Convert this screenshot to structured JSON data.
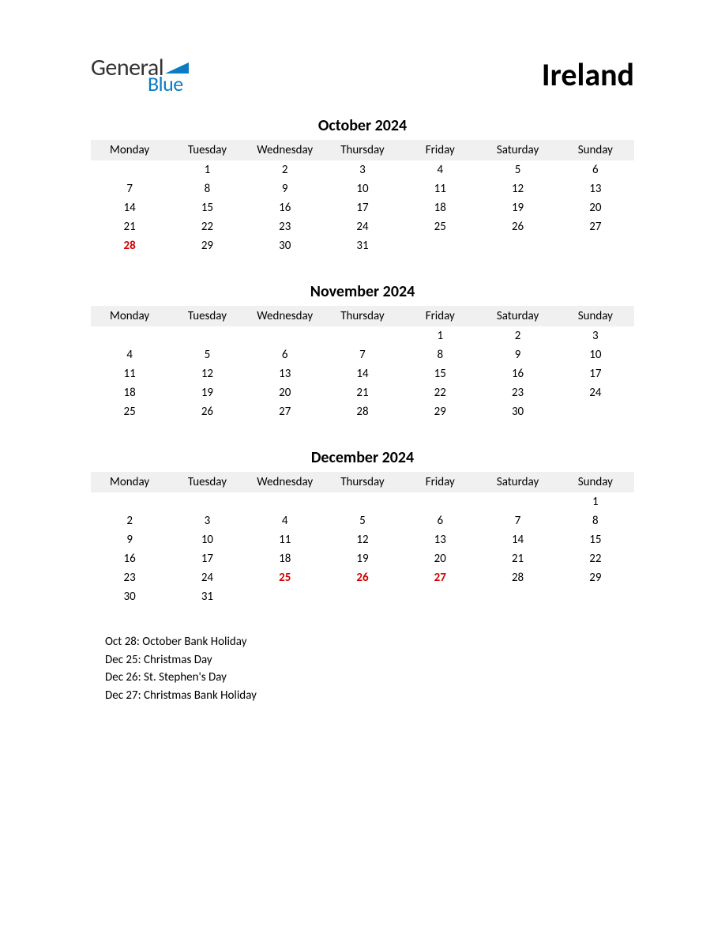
{
  "logo": {
    "text_general": "General",
    "text_blue": "Blue",
    "triangle_color": "#0b7cc1"
  },
  "country": "Ireland",
  "weekdays": [
    "Monday",
    "Tuesday",
    "Wednesday",
    "Thursday",
    "Friday",
    "Saturday",
    "Sunday"
  ],
  "colors": {
    "header_bg": "#f0f0f0",
    "text": "#000000",
    "holiday": "#d20000",
    "logo_blue": "#0b7cc1",
    "logo_gray": "#333333",
    "background": "#ffffff"
  },
  "typography": {
    "country_fontsize": 40,
    "month_title_fontsize": 20,
    "cell_fontsize": 15,
    "holiday_list_fontsize": 15
  },
  "months": [
    {
      "title": "October 2024",
      "rows": [
        [
          {
            "d": ""
          },
          {
            "d": "1"
          },
          {
            "d": "2"
          },
          {
            "d": "3"
          },
          {
            "d": "4"
          },
          {
            "d": "5"
          },
          {
            "d": "6"
          }
        ],
        [
          {
            "d": "7"
          },
          {
            "d": "8"
          },
          {
            "d": "9"
          },
          {
            "d": "10"
          },
          {
            "d": "11"
          },
          {
            "d": "12"
          },
          {
            "d": "13"
          }
        ],
        [
          {
            "d": "14"
          },
          {
            "d": "15"
          },
          {
            "d": "16"
          },
          {
            "d": "17"
          },
          {
            "d": "18"
          },
          {
            "d": "19"
          },
          {
            "d": "20"
          }
        ],
        [
          {
            "d": "21"
          },
          {
            "d": "22"
          },
          {
            "d": "23"
          },
          {
            "d": "24"
          },
          {
            "d": "25"
          },
          {
            "d": "26"
          },
          {
            "d": "27"
          }
        ],
        [
          {
            "d": "28",
            "h": true
          },
          {
            "d": "29"
          },
          {
            "d": "30"
          },
          {
            "d": "31"
          },
          {
            "d": ""
          },
          {
            "d": ""
          },
          {
            "d": ""
          }
        ]
      ]
    },
    {
      "title": "November 2024",
      "rows": [
        [
          {
            "d": ""
          },
          {
            "d": ""
          },
          {
            "d": ""
          },
          {
            "d": ""
          },
          {
            "d": "1"
          },
          {
            "d": "2"
          },
          {
            "d": "3"
          }
        ],
        [
          {
            "d": "4"
          },
          {
            "d": "5"
          },
          {
            "d": "6"
          },
          {
            "d": "7"
          },
          {
            "d": "8"
          },
          {
            "d": "9"
          },
          {
            "d": "10"
          }
        ],
        [
          {
            "d": "11"
          },
          {
            "d": "12"
          },
          {
            "d": "13"
          },
          {
            "d": "14"
          },
          {
            "d": "15"
          },
          {
            "d": "16"
          },
          {
            "d": "17"
          }
        ],
        [
          {
            "d": "18"
          },
          {
            "d": "19"
          },
          {
            "d": "20"
          },
          {
            "d": "21"
          },
          {
            "d": "22"
          },
          {
            "d": "23"
          },
          {
            "d": "24"
          }
        ],
        [
          {
            "d": "25"
          },
          {
            "d": "26"
          },
          {
            "d": "27"
          },
          {
            "d": "28"
          },
          {
            "d": "29"
          },
          {
            "d": "30"
          },
          {
            "d": ""
          }
        ]
      ]
    },
    {
      "title": "December 2024",
      "rows": [
        [
          {
            "d": ""
          },
          {
            "d": ""
          },
          {
            "d": ""
          },
          {
            "d": ""
          },
          {
            "d": ""
          },
          {
            "d": ""
          },
          {
            "d": "1"
          }
        ],
        [
          {
            "d": "2"
          },
          {
            "d": "3"
          },
          {
            "d": "4"
          },
          {
            "d": "5"
          },
          {
            "d": "6"
          },
          {
            "d": "7"
          },
          {
            "d": "8"
          }
        ],
        [
          {
            "d": "9"
          },
          {
            "d": "10"
          },
          {
            "d": "11"
          },
          {
            "d": "12"
          },
          {
            "d": "13"
          },
          {
            "d": "14"
          },
          {
            "d": "15"
          }
        ],
        [
          {
            "d": "16"
          },
          {
            "d": "17"
          },
          {
            "d": "18"
          },
          {
            "d": "19"
          },
          {
            "d": "20"
          },
          {
            "d": "21"
          },
          {
            "d": "22"
          }
        ],
        [
          {
            "d": "23"
          },
          {
            "d": "24"
          },
          {
            "d": "25",
            "h": true
          },
          {
            "d": "26",
            "h": true
          },
          {
            "d": "27",
            "h": true
          },
          {
            "d": "28"
          },
          {
            "d": "29"
          }
        ],
        [
          {
            "d": "30"
          },
          {
            "d": "31"
          },
          {
            "d": ""
          },
          {
            "d": ""
          },
          {
            "d": ""
          },
          {
            "d": ""
          },
          {
            "d": ""
          }
        ]
      ]
    }
  ],
  "holiday_list": [
    "Oct 28: October Bank Holiday",
    "Dec 25: Christmas Day",
    "Dec 26: St. Stephen's Day",
    "Dec 27: Christmas Bank Holiday"
  ]
}
